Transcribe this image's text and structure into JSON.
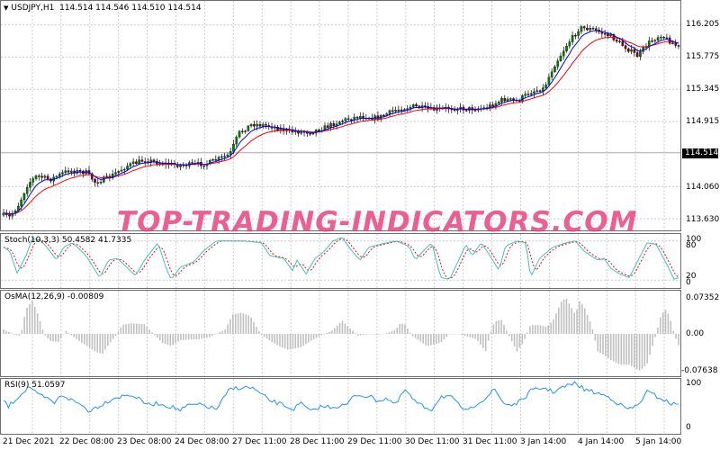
{
  "main_chart": {
    "symbol": "USDJPY,H1",
    "ohlc": "114.514 114.546 114.510 114.514",
    "current_price": "114.514",
    "price_axis": [
      "116.205",
      "115.775",
      "115.345",
      "114.915",
      "114.060",
      "113.630"
    ],
    "colors": {
      "bull": "#008000",
      "bear": "#8b0000",
      "wick": "#000000",
      "ma_fast": "#0000ff",
      "ma_slow": "#ff0000"
    }
  },
  "watermark": "TOP-TRADING-INDICATORS.COM",
  "stoch": {
    "label": "Stoch(10,3,3) 50.4582 41.7335",
    "axis": [
      "100",
      "80",
      "20",
      "0"
    ],
    "colors": {
      "main": "#40c0c0",
      "signal": "#ff0000"
    }
  },
  "osma": {
    "label": "OsMA(12,26,9) -0.00809",
    "axis": [
      "0.07352",
      "0.00",
      "-0.07638"
    ],
    "colors": {
      "bars": "#c0c0c0"
    }
  },
  "rsi": {
    "label": "RSI(9) 51.0597",
    "axis": [
      "100",
      "0"
    ],
    "colors": {
      "line": "#1e90ff"
    }
  },
  "time_axis": [
    "21 Dec 2021",
    "22 Dec 08:00",
    "23 Dec 08:00",
    "24 Dec 08:00",
    "27 Dec 11:00",
    "28 Dec 11:00",
    "29 Dec 11:00",
    "30 Dec 11:00",
    "31 Dec 11:00",
    "3 Jan 14:00",
    "4 Jan 14:00",
    "5 Jan 14:00"
  ]
}
